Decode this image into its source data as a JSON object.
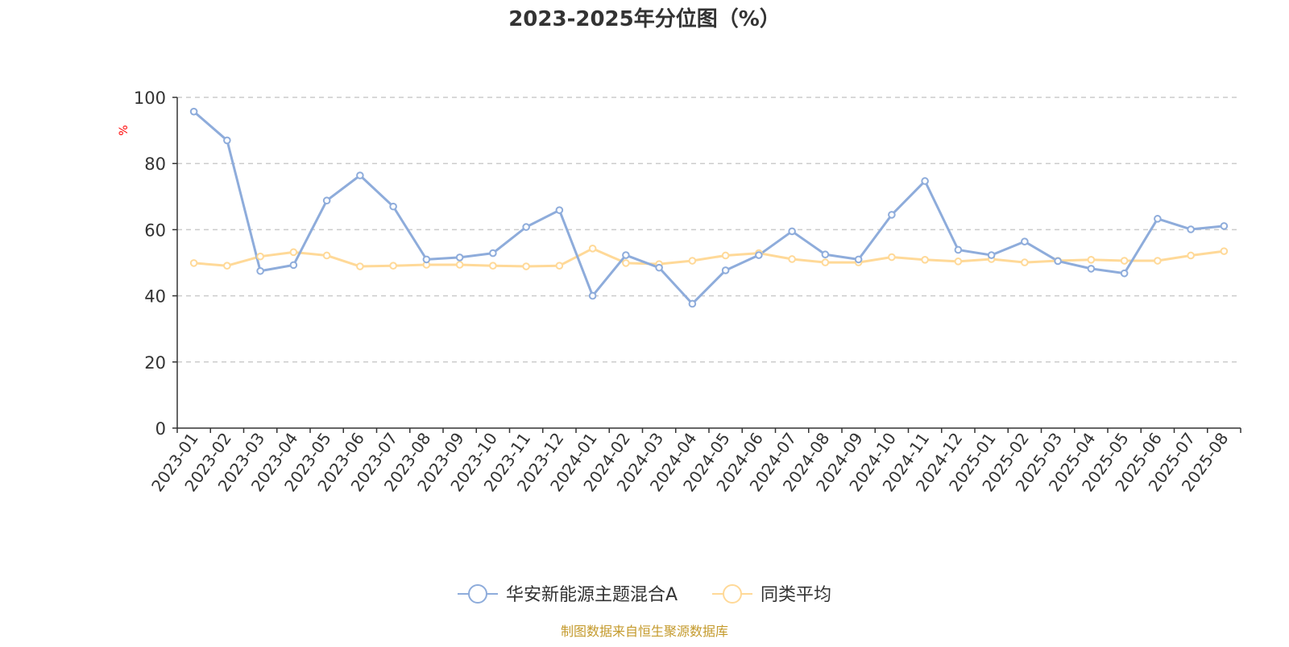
{
  "title": "2023-2025年分位图（%）",
  "source_note": "制图数据来自恒生聚源数据库",
  "colors": {
    "series_a": "#8eacdb",
    "series_b": "#ffd998",
    "title": "#333333",
    "axis": "#333333",
    "grid": "#cccccc",
    "ylabel": "#ff0000",
    "source": "#c49a2c"
  },
  "chart_data": {
    "type": "line",
    "title": "2023-2025年分位图（%）",
    "xlabel": "",
    "ylabel": "%",
    "ylim": [
      0,
      100
    ],
    "yticks": [
      0,
      20,
      40,
      60,
      80,
      100
    ],
    "grid": true,
    "legend_position": "bottom-center",
    "categories": [
      "2023-01",
      "2023-02",
      "2023-03",
      "2023-04",
      "2023-05",
      "2023-06",
      "2023-07",
      "2023-08",
      "2023-09",
      "2023-10",
      "2023-11",
      "2023-12",
      "2024-01",
      "2024-02",
      "2024-03",
      "2024-04",
      "2024-05",
      "2024-06",
      "2024-07",
      "2024-08",
      "2024-09",
      "2024-10",
      "2024-11",
      "2024-12",
      "2025-01",
      "2025-02",
      "2025-03",
      "2025-04",
      "2025-05",
      "2025-06",
      "2025-07",
      "2025-08"
    ],
    "series": [
      {
        "name": "华安新能源主题混合A",
        "values": [
          95.7,
          87.0,
          47.5,
          49.3,
          68.8,
          76.4,
          67.0,
          51.0,
          51.6,
          52.9,
          60.8,
          65.9,
          40.0,
          52.3,
          48.5,
          37.6,
          47.7,
          52.3,
          59.5,
          52.5,
          51.0,
          64.5,
          74.7,
          53.9,
          52.3,
          56.4,
          50.5,
          48.2,
          46.8,
          63.3,
          60.1,
          61.1
        ]
      },
      {
        "name": "同类平均",
        "values": [
          49.9,
          49.1,
          51.9,
          53.2,
          52.2,
          48.9,
          49.1,
          49.4,
          49.4,
          49.1,
          48.9,
          49.1,
          54.3,
          49.9,
          49.6,
          50.6,
          52.2,
          52.9,
          51.1,
          50.1,
          50.1,
          51.7,
          50.9,
          50.4,
          51.1,
          50.1,
          50.6,
          50.9,
          50.6,
          50.6,
          52.2,
          53.5
        ]
      }
    ]
  }
}
